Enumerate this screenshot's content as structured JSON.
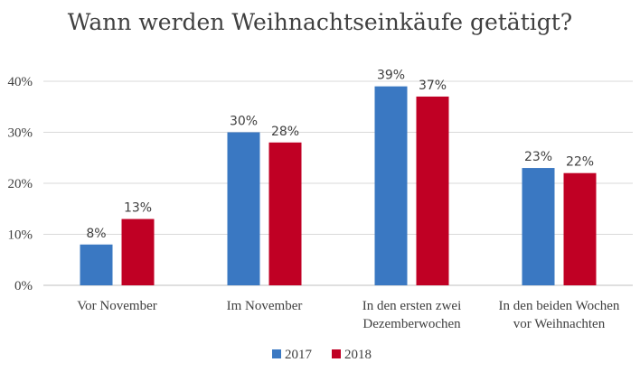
{
  "chart_data": {
    "type": "bar",
    "title": "Wann werden Weihnachtseinkäufe getätigt?",
    "xlabel": "",
    "ylabel": "",
    "ylim": [
      0,
      40
    ],
    "yticks": [
      0,
      10,
      20,
      30,
      40
    ],
    "ytick_labels": [
      "0%",
      "10%",
      "20%",
      "30%",
      "40%"
    ],
    "categories": [
      [
        "Vor November"
      ],
      [
        "Im November"
      ],
      [
        "In den ersten zwei",
        "Dezemberwochen"
      ],
      [
        "In den beiden Wochen",
        "vor Weihnachten"
      ]
    ],
    "series": [
      {
        "name": "2017",
        "color": "#3a78c2",
        "values": [
          8,
          30,
          39,
          23
        ],
        "labels": [
          "8%",
          "30%",
          "39%",
          "23%"
        ]
      },
      {
        "name": "2018",
        "color": "#c00024",
        "values": [
          13,
          28,
          37,
          22
        ],
        "labels": [
          "13%",
          "28%",
          "37%",
          "22%"
        ]
      }
    ],
    "grid": true,
    "legend": "bottom-center"
  }
}
